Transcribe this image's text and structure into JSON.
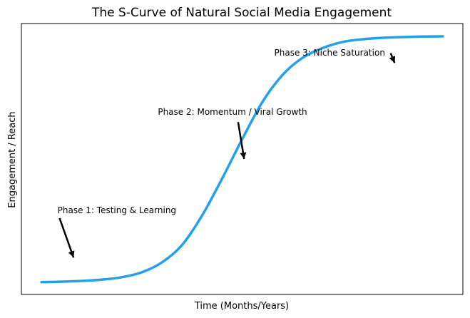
{
  "chart_data": {
    "type": "line",
    "title": "The S-Curve of Natural Social Media Engagement",
    "xlabel": "Time (Months/Years)",
    "ylabel": "Engagement / Reach",
    "xlim": [
      -0.5,
      10.5
    ],
    "ylim": [
      -0.05,
      1.05
    ],
    "grid": false,
    "x_ticks_visible": false,
    "y_ticks_visible": false,
    "legend": "none",
    "series": [
      {
        "color": "#24a0ea",
        "x": [
          0,
          0.5,
          1,
          1.5,
          2,
          2.5,
          3,
          3.5,
          4,
          4.5,
          5,
          5.5,
          6,
          6.5,
          7,
          7.5,
          8,
          8.5,
          9,
          9.5,
          10
        ],
        "y": [
          0.0,
          0.002,
          0.005,
          0.01,
          0.02,
          0.04,
          0.08,
          0.15,
          0.27,
          0.42,
          0.58,
          0.73,
          0.84,
          0.91,
          0.95,
          0.975,
          0.986,
          0.992,
          0.995,
          0.997,
          0.998
        ]
      }
    ],
    "annotations": [
      {
        "text": "Phase 1: Testing & Learning",
        "text_x": 0.4,
        "text_y": 0.28,
        "arrow_start": [
          0.45,
          0.26
        ],
        "arrow_end": [
          0.8,
          0.1
        ]
      },
      {
        "text": "Phase 2: Momentum / Viral Growth",
        "text_x": 2.9,
        "text_y": 0.68,
        "arrow_start": [
          4.9,
          0.65
        ],
        "arrow_end": [
          5.05,
          0.5
        ]
      },
      {
        "text": "Phase 3: Niche Saturation",
        "text_x": 5.8,
        "text_y": 0.92,
        "arrow_start": [
          8.7,
          0.93
        ],
        "arrow_end": [
          8.8,
          0.89
        ]
      }
    ]
  }
}
